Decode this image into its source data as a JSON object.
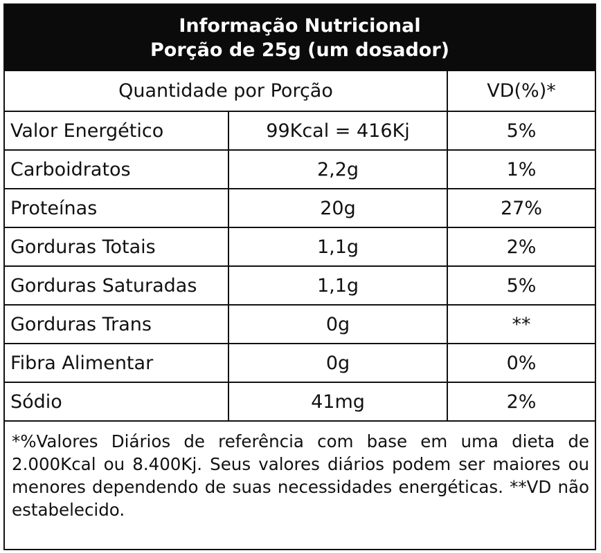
{
  "header": {
    "title": "Informação Nutricional",
    "subtitle": "Porção de 25g (um dosador)"
  },
  "columns": {
    "quantity": "Quantidade por Porção",
    "vd": "VD(%)*"
  },
  "rows": [
    {
      "name": "Valor Energético",
      "amount": "99Kcal = 416Kj",
      "vd": "5%"
    },
    {
      "name": "Carboidratos",
      "amount": "2,2g",
      "vd": "1%"
    },
    {
      "name": "Proteínas",
      "amount": "20g",
      "vd": "27%"
    },
    {
      "name": "Gorduras Totais",
      "amount": "1,1g",
      "vd": "2%"
    },
    {
      "name": "Gorduras Saturadas",
      "amount": "1,1g",
      "vd": "5%"
    },
    {
      "name": "Gorduras Trans",
      "amount": "0g",
      "vd": "**"
    },
    {
      "name": "Fibra Alimentar",
      "amount": "0g",
      "vd": "0%"
    },
    {
      "name": "Sódio",
      "amount": "41mg",
      "vd": "2%"
    }
  ],
  "footnote": "*%Valores Diários de referência com base em uma dieta de 2.000Kcal ou 8.400Kj. Seus valores diários podem ser maiores ou menores dependendo de suas necessidades energéticas. **VD não estabelecido."
}
